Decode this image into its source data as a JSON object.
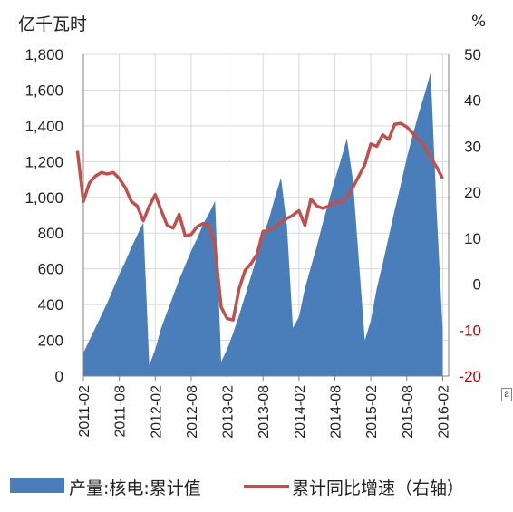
{
  "chart_data": {
    "type": "area+line",
    "left_unit": "亿千瓦时",
    "right_unit": "%",
    "left_axis": {
      "min": 0,
      "max": 1800,
      "ticks": [
        "0",
        "200",
        "400",
        "600",
        "800",
        "1,000",
        "1,200",
        "1,400",
        "1,600",
        "1,800"
      ]
    },
    "right_axis": {
      "min": -20,
      "max": 50,
      "ticks": [
        "-20",
        "-10",
        "0",
        "10",
        "20",
        "30",
        "40",
        "50"
      ]
    },
    "x_tick_labels": [
      "2011-02",
      "2011-08",
      "2012-02",
      "2012-08",
      "2013-02",
      "2013-08",
      "2014-02",
      "2014-08",
      "2015-02",
      "2015-08",
      "2016-02"
    ],
    "series": [
      {
        "name": "产量:核电:累计值",
        "type": "area",
        "axis": "left",
        "color": "#4a7ebb",
        "points": [
          [
            "2011-02",
            130
          ],
          [
            "2011-03",
            200
          ],
          [
            "2011-04",
            270
          ],
          [
            "2011-05",
            340
          ],
          [
            "2011-06",
            410
          ],
          [
            "2011-07",
            490
          ],
          [
            "2011-08",
            570
          ],
          [
            "2011-09",
            640
          ],
          [
            "2011-10",
            720
          ],
          [
            "2011-11",
            790
          ],
          [
            "2011-12",
            860
          ],
          [
            "2012-01",
            60
          ],
          [
            "2012-02",
            150
          ],
          [
            "2012-03",
            270
          ],
          [
            "2012-04",
            360
          ],
          [
            "2012-05",
            450
          ],
          [
            "2012-06",
            540
          ],
          [
            "2012-07",
            620
          ],
          [
            "2012-08",
            700
          ],
          [
            "2012-09",
            770
          ],
          [
            "2012-10",
            850
          ],
          [
            "2012-11",
            910
          ],
          [
            "2012-12",
            980
          ],
          [
            "2013-01",
            80
          ],
          [
            "2013-02",
            150
          ],
          [
            "2013-03",
            240
          ],
          [
            "2013-04",
            340
          ],
          [
            "2013-05",
            450
          ],
          [
            "2013-06",
            560
          ],
          [
            "2013-07",
            670
          ],
          [
            "2013-08",
            780
          ],
          [
            "2013-09",
            880
          ],
          [
            "2013-10",
            1000
          ],
          [
            "2013-11",
            1110
          ],
          [
            "2013-12",
            840
          ],
          [
            "2014-01",
            270
          ],
          [
            "2014-02",
            330
          ],
          [
            "2014-03",
            490
          ],
          [
            "2014-04",
            610
          ],
          [
            "2014-05",
            730
          ],
          [
            "2014-06",
            860
          ],
          [
            "2014-07",
            980
          ],
          [
            "2014-08",
            1100
          ],
          [
            "2014-09",
            1210
          ],
          [
            "2014-10",
            1330
          ],
          [
            "2014-11",
            1100
          ],
          [
            "2015-01",
            200
          ],
          [
            "2015-02",
            310
          ],
          [
            "2015-03",
            490
          ],
          [
            "2015-04",
            630
          ],
          [
            "2015-05",
            780
          ],
          [
            "2015-06",
            930
          ],
          [
            "2015-07",
            1070
          ],
          [
            "2015-08",
            1220
          ],
          [
            "2015-09",
            1350
          ],
          [
            "2015-10",
            1470
          ],
          [
            "2015-11",
            1580
          ],
          [
            "2015-12",
            1700
          ],
          [
            "2016-01",
            920
          ],
          [
            "2016-02",
            260
          ]
        ]
      },
      {
        "name": "累计同比增速（右轴）",
        "type": "line",
        "axis": "right",
        "color": "#c0504d",
        "points": [
          [
            "2011-01",
            29
          ],
          [
            "2011-02",
            18
          ],
          [
            "2011-03",
            22
          ],
          [
            "2011-04",
            23.5
          ],
          [
            "2011-05",
            24.3
          ],
          [
            "2011-06",
            24
          ],
          [
            "2011-07",
            24.3
          ],
          [
            "2011-08",
            23
          ],
          [
            "2011-09",
            21
          ],
          [
            "2011-10",
            18
          ],
          [
            "2011-11",
            17
          ],
          [
            "2011-12",
            13.8
          ],
          [
            "2012-01",
            17
          ],
          [
            "2012-02",
            19.5
          ],
          [
            "2012-03",
            16
          ],
          [
            "2012-04",
            12.8
          ],
          [
            "2012-05",
            12.2
          ],
          [
            "2012-06",
            15.2
          ],
          [
            "2012-07",
            10.5
          ],
          [
            "2012-08",
            10.8
          ],
          [
            "2012-09",
            12.5
          ],
          [
            "2012-10",
            13.2
          ],
          [
            "2012-11",
            12.8
          ],
          [
            "2012-12",
            8
          ],
          [
            "2013-01",
            -5
          ],
          [
            "2013-02",
            -7.5
          ],
          [
            "2013-03",
            -7.8
          ],
          [
            "2013-04",
            -1
          ],
          [
            "2013-05",
            3
          ],
          [
            "2013-06",
            4.5
          ],
          [
            "2013-07",
            6.5
          ],
          [
            "2013-08",
            11.5
          ],
          [
            "2013-09",
            11.7
          ],
          [
            "2013-10",
            12.5
          ],
          [
            "2013-11",
            13.5
          ],
          [
            "2013-12",
            14.3
          ],
          [
            "2014-01",
            15
          ],
          [
            "2014-02",
            16
          ],
          [
            "2014-03",
            12.8
          ],
          [
            "2014-04",
            18.5
          ],
          [
            "2014-05",
            17
          ],
          [
            "2014-06",
            16.5
          ],
          [
            "2014-07",
            17
          ],
          [
            "2014-08",
            18
          ],
          [
            "2014-09",
            17.8
          ],
          [
            "2014-10",
            19
          ],
          [
            "2014-11",
            21
          ],
          [
            "2015-01",
            26
          ],
          [
            "2015-02",
            30.5
          ],
          [
            "2015-03",
            30
          ],
          [
            "2015-04",
            32.5
          ],
          [
            "2015-05",
            31.5
          ],
          [
            "2015-06",
            34.8
          ],
          [
            "2015-07",
            35
          ],
          [
            "2015-08",
            34.2
          ],
          [
            "2015-09",
            32.8
          ],
          [
            "2015-10",
            31.5
          ],
          [
            "2015-11",
            30
          ],
          [
            "2015-12",
            27.5
          ],
          [
            "2016-01",
            25.5
          ],
          [
            "2016-02",
            23
          ]
        ]
      }
    ]
  },
  "legend": {
    "area_label": "产量:核电:累计值",
    "line_label": "累计同比增速（右轴）"
  },
  "note_marker": "a"
}
